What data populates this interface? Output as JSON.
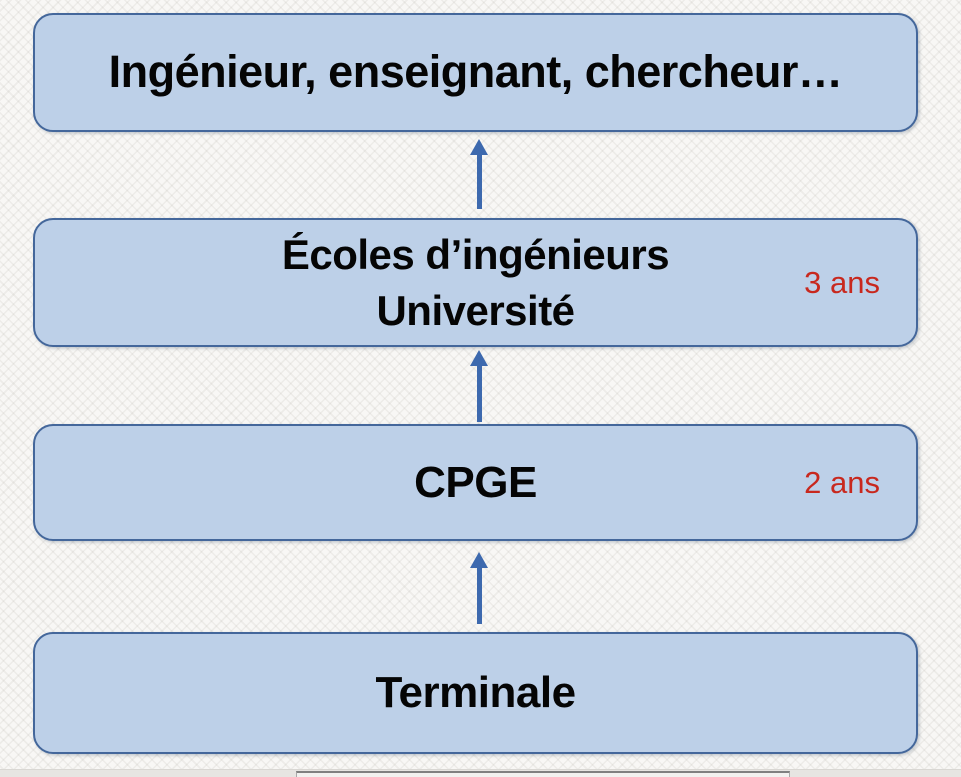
{
  "slide": {
    "boxes": {
      "outcome": {
        "label": "Ingénieur, enseignant, chercheur…"
      },
      "ecoles": {
        "line1": "Écoles d’ingénieurs",
        "line2": "Université",
        "duration": "3 ans"
      },
      "cpge": {
        "label": "CPGE",
        "duration": "2 ans"
      },
      "terminale": {
        "label": "Terminale"
      }
    }
  },
  "colors": {
    "box_fill": "#bdd0e8",
    "box_border": "#44679b",
    "arrow": "#3d69ae",
    "duration_red": "#c8281e",
    "text": "#050505"
  }
}
